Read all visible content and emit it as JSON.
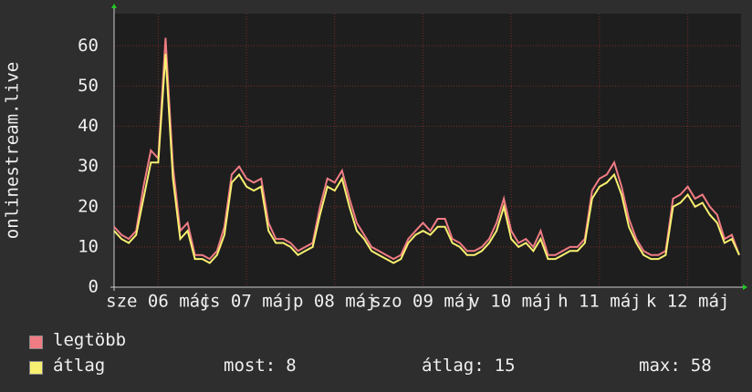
{
  "chart_data": {
    "type": "line",
    "y_label": "onlinestream.live",
    "ylim": [
      0,
      68
    ],
    "yticks": [
      0,
      10,
      20,
      30,
      40,
      50,
      60
    ],
    "grid": true,
    "xlim": [
      0,
      85
    ],
    "xticks": [
      {
        "value": 6,
        "label": "sze 06 máj"
      },
      {
        "value": 18,
        "label": "cs 07 máj"
      },
      {
        "value": 30,
        "label": "p 08 máj"
      },
      {
        "value": 42,
        "label": "szo 09 máj"
      },
      {
        "value": 54,
        "label": "v 10 máj"
      },
      {
        "value": 66,
        "label": "h 11 máj"
      },
      {
        "value": 78,
        "label": "k 12 máj"
      }
    ],
    "series": [
      {
        "name": "legtöbb",
        "color": "#f07c84",
        "values": [
          15,
          13,
          12,
          14,
          25,
          34,
          32,
          62,
          30,
          14,
          16,
          8,
          8,
          7,
          9,
          15,
          28,
          30,
          27,
          26,
          27,
          16,
          12,
          12,
          11,
          9,
          10,
          11,
          20,
          27,
          26,
          29,
          22,
          16,
          13,
          10,
          9,
          8,
          7,
          8,
          12,
          14,
          16,
          14,
          17,
          17,
          12,
          11,
          9,
          9,
          10,
          12,
          16,
          22,
          14,
          11,
          12,
          10,
          14,
          8,
          8,
          9,
          10,
          10,
          12,
          24,
          27,
          28,
          31,
          25,
          17,
          12,
          9,
          8,
          8,
          9,
          22,
          23,
          25,
          22,
          23,
          20,
          18,
          12,
          13,
          8
        ]
      },
      {
        "name": "átlag",
        "color": "#f8f070",
        "values": [
          14,
          12,
          11,
          13,
          22,
          31,
          31,
          58,
          27,
          12,
          14,
          7,
          7,
          6,
          8,
          13,
          26,
          28,
          25,
          24,
          25,
          14,
          11,
          11,
          10,
          8,
          9,
          10,
          18,
          25,
          24,
          27,
          20,
          14,
          12,
          9,
          8,
          7,
          6,
          7,
          11,
          13,
          14,
          13,
          15,
          15,
          11,
          10,
          8,
          8,
          9,
          11,
          14,
          20,
          12,
          10,
          11,
          9,
          12,
          7,
          7,
          8,
          9,
          9,
          11,
          22,
          25,
          26,
          28,
          23,
          15,
          11,
          8,
          7,
          7,
          8,
          20,
          21,
          23,
          20,
          21,
          18,
          16,
          11,
          12,
          8
        ]
      }
    ],
    "stats": [
      {
        "label": "most:",
        "value": 8
      },
      {
        "label": "átlag:",
        "value": 15
      },
      {
        "label": "max:",
        "value": 58
      }
    ]
  }
}
